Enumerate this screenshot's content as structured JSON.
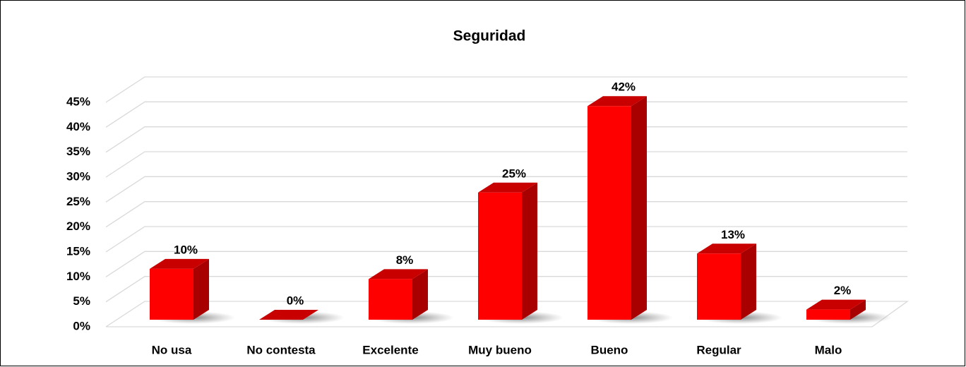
{
  "chart_data": {
    "type": "bar3d",
    "title": "Seguridad",
    "categories": [
      "No usa",
      "No contesta",
      "Excelente",
      "Muy bueno",
      "Bueno",
      "Regular",
      "Malo"
    ],
    "values": [
      10,
      0,
      8,
      25,
      42,
      13,
      2
    ],
    "value_labels": [
      "10%",
      "0%",
      "8%",
      "25%",
      "42%",
      "13%",
      "2%"
    ],
    "color": "#ff0000",
    "ylim": [
      0,
      45
    ],
    "yticks": [
      {
        "value": 0,
        "label": "0%"
      },
      {
        "value": 5,
        "label": "5%"
      },
      {
        "value": 10,
        "label": "10%"
      },
      {
        "value": 15,
        "label": "15%"
      },
      {
        "value": 20,
        "label": "20%"
      },
      {
        "value": 25,
        "label": "25%"
      },
      {
        "value": 30,
        "label": "30%"
      },
      {
        "value": 35,
        "label": "35%"
      },
      {
        "value": 40,
        "label": "40%"
      },
      {
        "value": 45,
        "label": "45%"
      }
    ],
    "grid": true
  }
}
